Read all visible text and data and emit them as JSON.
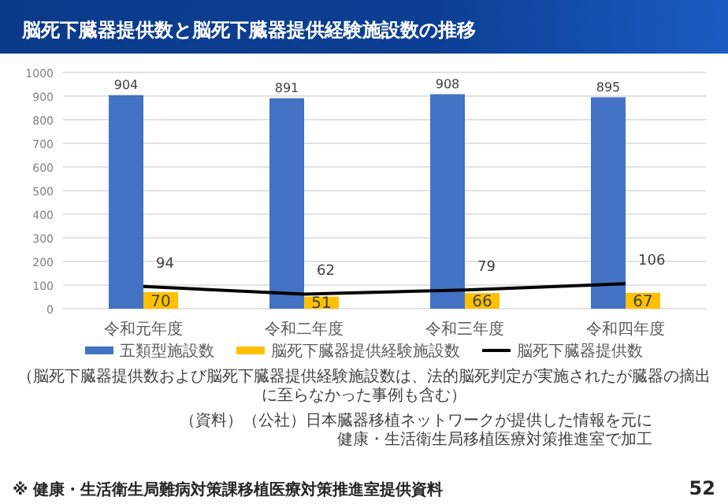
{
  "chart_data": {
    "type": "bar",
    "title": "脳死下臓器提供数と脳死下臓器提供経験施設数の推移",
    "categories": [
      "令和元年度",
      "令和二年度",
      "令和三年度",
      "令和四年度"
    ],
    "series": [
      {
        "name": "五類型施設数",
        "color": "#4472c4",
        "values": [
          904,
          891,
          908,
          895
        ]
      },
      {
        "name": "脳死下臓器提供経験施設数",
        "color": "#ffc000",
        "values": [
          70,
          51,
          66,
          67
        ]
      },
      {
        "name": "脳死下臓器提供数",
        "type": "line",
        "color": "#000000",
        "values": [
          94,
          62,
          79,
          106
        ]
      }
    ],
    "ylim": [
      0,
      1000
    ],
    "yticks": [
      0,
      100,
      200,
      300,
      400,
      500,
      600,
      700,
      800,
      900,
      1000
    ],
    "grid": "y",
    "legend": "bottom",
    "data_labels": true,
    "marker": "none",
    "annotations": [
      "（脳死下臓器提供数および脳死下臓器提供経験施設数は、法的脳死判定が実施されたが臓器の摘出に至らなかった事例も含む）",
      "（資料）（公社）日本臓器移植ネットワークが提供した情報を元に",
      "健康・生活衛生局移植医療対策推進室で加工",
      "※ 健康・生活衛生局難病対策課移植医療対策推進室提供資料",
      "52"
    ]
  }
}
